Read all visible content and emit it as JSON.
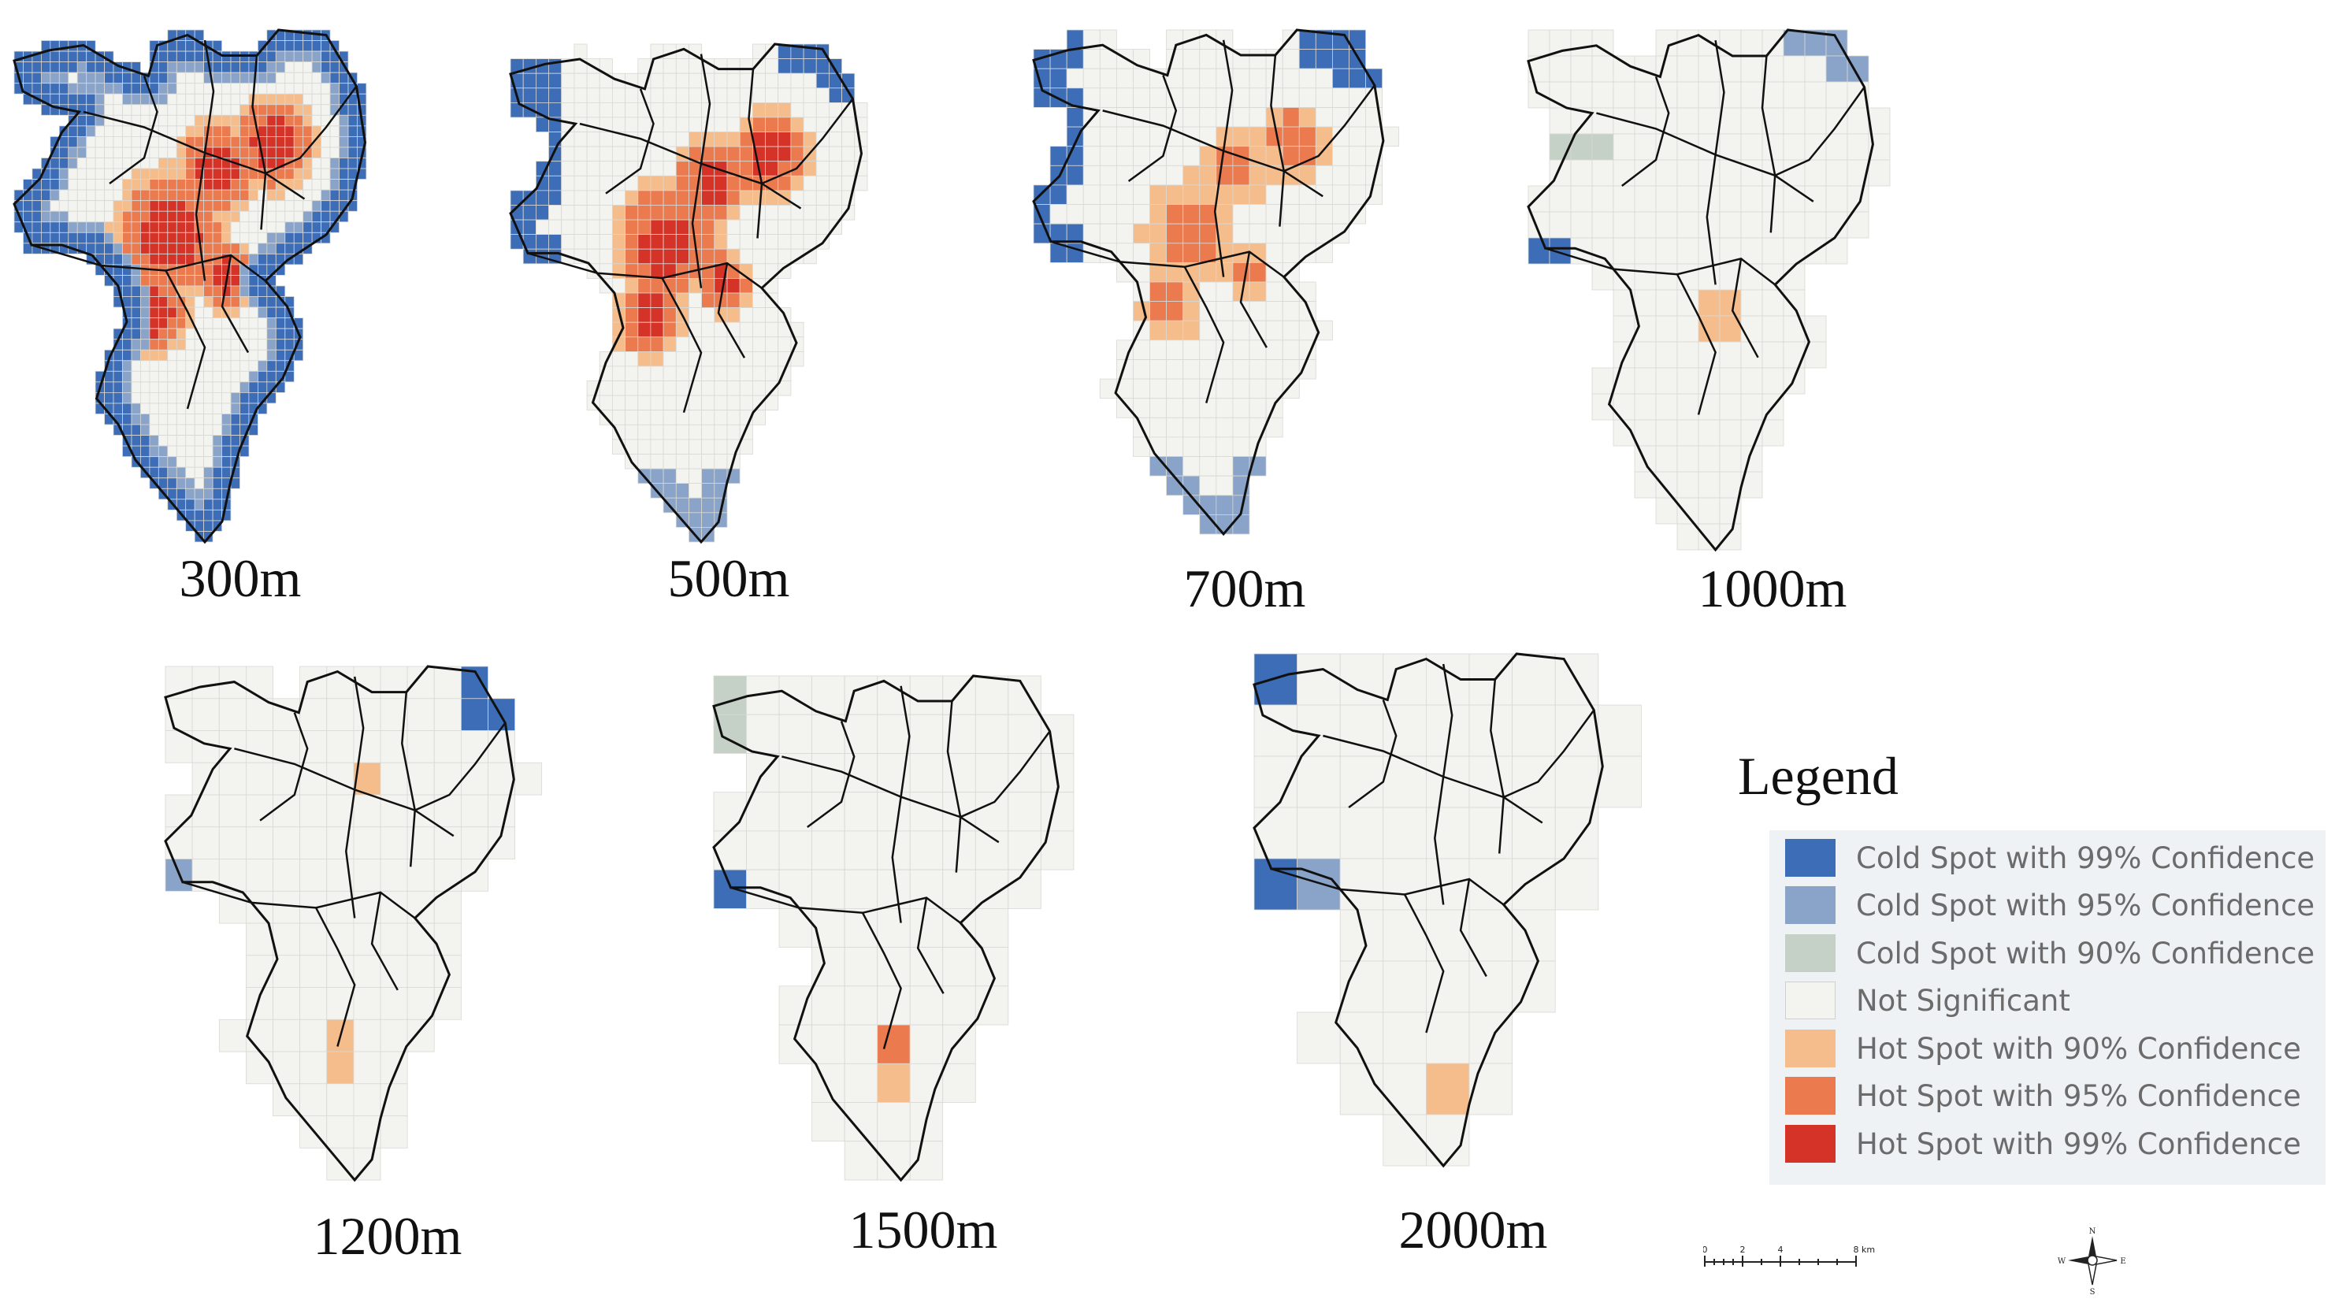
{
  "panels": [
    {
      "id": "p300",
      "caption": "300m",
      "cell_size_m": 300
    },
    {
      "id": "p500",
      "caption": "500m",
      "cell_size_m": 500
    },
    {
      "id": "p700",
      "caption": "700m",
      "cell_size_m": 700
    },
    {
      "id": "p1000",
      "caption": "1000m",
      "cell_size_m": 1000
    },
    {
      "id": "p1200",
      "caption": "1200m",
      "cell_size_m": 1200
    },
    {
      "id": "p1500",
      "caption": "1500m",
      "cell_size_m": 1500
    },
    {
      "id": "p2000",
      "caption": "2000m",
      "cell_size_m": 2000
    }
  ],
  "legend": {
    "title": "Legend",
    "items": [
      {
        "label": "Cold Spot with 99% Confidence",
        "color": "#3c6db6"
      },
      {
        "label": "Cold Spot with 95% Confidence",
        "color": "#8aa3c8"
      },
      {
        "label": "Cold Spot with 90% Confidence",
        "color": "#c5d1c6"
      },
      {
        "label": "Not Significant",
        "color": "#f3f3ef"
      },
      {
        "label": "Hot Spot with 90% Confidence",
        "color": "#f6bd8c"
      },
      {
        "label": "Hot Spot with 95% Confidence",
        "color": "#ec7a4f"
      },
      {
        "label": "Hot Spot with 99% Confidence",
        "color": "#d63328"
      }
    ]
  },
  "scalebar": {
    "ticks": [
      "0",
      "2",
      "4",
      "8"
    ],
    "unit": "km"
  },
  "compass": {
    "north": "N",
    "south": "S",
    "east": "E",
    "west": "W"
  }
}
